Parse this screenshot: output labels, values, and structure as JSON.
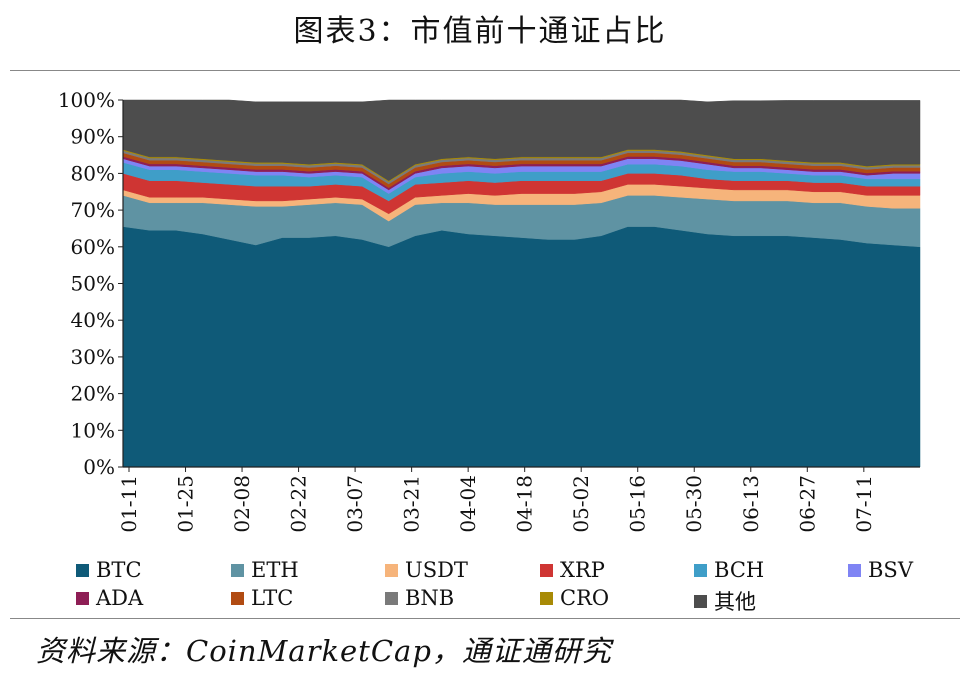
{
  "figure": {
    "title": "图表3：市值前十通证占比",
    "source": "资料来源：CoinMarketCap，通证通研究"
  },
  "chart_data": {
    "type": "area",
    "stacked": true,
    "title": "图表3：市值前十通证占比",
    "xlabel": "",
    "ylabel": "",
    "ylim": [
      0,
      100
    ],
    "yticks": [
      "0%",
      "10%",
      "20%",
      "30%",
      "40%",
      "50%",
      "60%",
      "70%",
      "80%",
      "90%",
      "100%"
    ],
    "x_tick_labels": [
      "01-11",
      "01-25",
      "02-08",
      "02-22",
      "03-07",
      "03-21",
      "04-04",
      "04-18",
      "05-02",
      "05-16",
      "05-30",
      "06-13",
      "06-27",
      "07-11"
    ],
    "x": [
      "01-11",
      "01-18",
      "01-25",
      "02-01",
      "02-08",
      "02-15",
      "02-22",
      "03-01",
      "03-07",
      "03-12",
      "03-13",
      "03-14",
      "03-21",
      "03-28",
      "04-04",
      "04-11",
      "04-18",
      "04-25",
      "05-02",
      "05-09",
      "05-16",
      "05-23",
      "05-30",
      "06-06",
      "06-13",
      "06-20",
      "06-27",
      "07-04",
      "07-11",
      "07-18",
      "07-25"
    ],
    "legend_position": "bottom",
    "series": [
      {
        "name": "BTC",
        "color": "#0f5a78",
        "values": [
          65.5,
          64.5,
          64.5,
          63.5,
          62.0,
          60.5,
          62.5,
          62.5,
          63.0,
          62.0,
          60.0,
          63.0,
          64.5,
          63.5,
          63.0,
          62.5,
          62.0,
          62.0,
          63.0,
          65.5,
          65.5,
          64.5,
          63.5,
          63.0,
          63.0,
          63.0,
          62.5,
          62.0,
          61.0,
          60.5,
          60.0
        ]
      },
      {
        "name": "ETH",
        "color": "#5f93a3",
        "values": [
          8.5,
          7.5,
          7.5,
          8.5,
          9.5,
          10.5,
          8.5,
          9.0,
          9.0,
          9.5,
          7.0,
          8.5,
          7.5,
          8.5,
          8.5,
          9.0,
          9.5,
          9.5,
          9.0,
          8.5,
          8.5,
          9.0,
          9.5,
          9.5,
          9.5,
          9.5,
          9.5,
          10.0,
          10.0,
          10.0,
          10.5
        ]
      },
      {
        "name": "USDT",
        "color": "#f6b47b",
        "values": [
          1.5,
          1.5,
          1.5,
          1.5,
          1.5,
          1.5,
          1.5,
          1.5,
          1.5,
          1.5,
          2.0,
          2.0,
          2.0,
          2.5,
          2.5,
          3.0,
          3.0,
          3.0,
          3.0,
          3.0,
          3.0,
          3.0,
          3.0,
          3.0,
          3.0,
          3.0,
          3.0,
          3.0,
          3.0,
          3.5,
          3.5
        ]
      },
      {
        "name": "XRP",
        "color": "#cf3533",
        "values": [
          4.5,
          4.5,
          4.5,
          4.0,
          4.0,
          4.0,
          4.0,
          3.5,
          3.5,
          3.5,
          3.5,
          3.5,
          3.5,
          3.5,
          3.5,
          3.5,
          3.5,
          3.5,
          3.0,
          3.0,
          3.0,
          3.0,
          2.5,
          2.5,
          2.5,
          2.5,
          2.5,
          2.5,
          2.5,
          2.5,
          2.5
        ]
      },
      {
        "name": "BCH",
        "color": "#3f9ec8",
        "values": [
          3.0,
          3.0,
          3.0,
          3.0,
          3.0,
          3.0,
          3.0,
          2.5,
          2.5,
          2.5,
          2.0,
          2.0,
          2.5,
          2.5,
          2.5,
          2.5,
          2.5,
          2.5,
          2.5,
          2.5,
          2.5,
          2.5,
          2.5,
          2.5,
          2.5,
          2.0,
          2.0,
          2.0,
          2.0,
          2.0,
          2.0
        ]
      },
      {
        "name": "BSV",
        "color": "#7f84f4",
        "values": [
          1.0,
          1.0,
          1.0,
          1.0,
          1.0,
          1.0,
          1.0,
          1.0,
          1.0,
          1.0,
          1.0,
          1.0,
          1.5,
          1.5,
          1.5,
          1.5,
          1.5,
          1.5,
          1.5,
          1.5,
          1.5,
          1.5,
          1.5,
          1.0,
          1.0,
          1.0,
          1.0,
          1.0,
          1.0,
          1.5,
          1.5
        ]
      },
      {
        "name": "ADA",
        "color": "#8e1e55",
        "values": [
          0.6,
          0.6,
          0.6,
          0.6,
          0.6,
          0.6,
          0.6,
          0.6,
          0.6,
          0.6,
          0.6,
          0.6,
          0.6,
          0.6,
          0.6,
          0.6,
          0.6,
          0.6,
          0.6,
          0.6,
          0.6,
          0.6,
          0.6,
          0.6,
          0.6,
          0.6,
          0.6,
          0.6,
          0.6,
          0.6,
          0.6
        ]
      },
      {
        "name": "LTC",
        "color": "#b14b12",
        "values": [
          1.0,
          1.0,
          1.0,
          1.0,
          1.0,
          1.0,
          1.0,
          1.0,
          1.0,
          1.0,
          1.0,
          1.0,
          1.0,
          1.0,
          1.0,
          1.0,
          1.0,
          1.0,
          1.0,
          1.0,
          1.0,
          1.0,
          1.0,
          1.0,
          1.0,
          1.0,
          1.0,
          1.0,
          1.0,
          1.0,
          1.0
        ]
      },
      {
        "name": "BNB",
        "color": "#7a7a7a",
        "values": [
          0.6,
          0.6,
          0.6,
          0.6,
          0.6,
          0.6,
          0.6,
          0.6,
          0.6,
          0.6,
          0.6,
          0.6,
          0.6,
          0.6,
          0.6,
          0.6,
          0.6,
          0.6,
          0.6,
          0.6,
          0.6,
          0.6,
          0.6,
          0.6,
          0.6,
          0.6,
          0.6,
          0.6,
          0.6,
          0.6,
          0.6
        ]
      },
      {
        "name": "CRO",
        "color": "#a88a06",
        "values": [
          0.3,
          0.3,
          0.3,
          0.3,
          0.3,
          0.3,
          0.3,
          0.3,
          0.3,
          0.3,
          0.3,
          0.3,
          0.3,
          0.3,
          0.3,
          0.3,
          0.3,
          0.3,
          0.3,
          0.3,
          0.3,
          0.3,
          0.3,
          0.3,
          0.3,
          0.3,
          0.3,
          0.3,
          0.3,
          0.3,
          0.3
        ]
      },
      {
        "name": "其他",
        "color": "#4d4d4d",
        "values": [
          13.5,
          15.5,
          15.5,
          16.0,
          16.5,
          16.5,
          16.5,
          17.0,
          16.5,
          17.0,
          22.0,
          17.5,
          16.0,
          15.5,
          16.0,
          15.5,
          15.5,
          15.5,
          15.5,
          13.5,
          13.5,
          14.5,
          14.5,
          15.8,
          15.8,
          16.4,
          16.9,
          16.9,
          17.9,
          17.4,
          17.4
        ]
      }
    ]
  }
}
